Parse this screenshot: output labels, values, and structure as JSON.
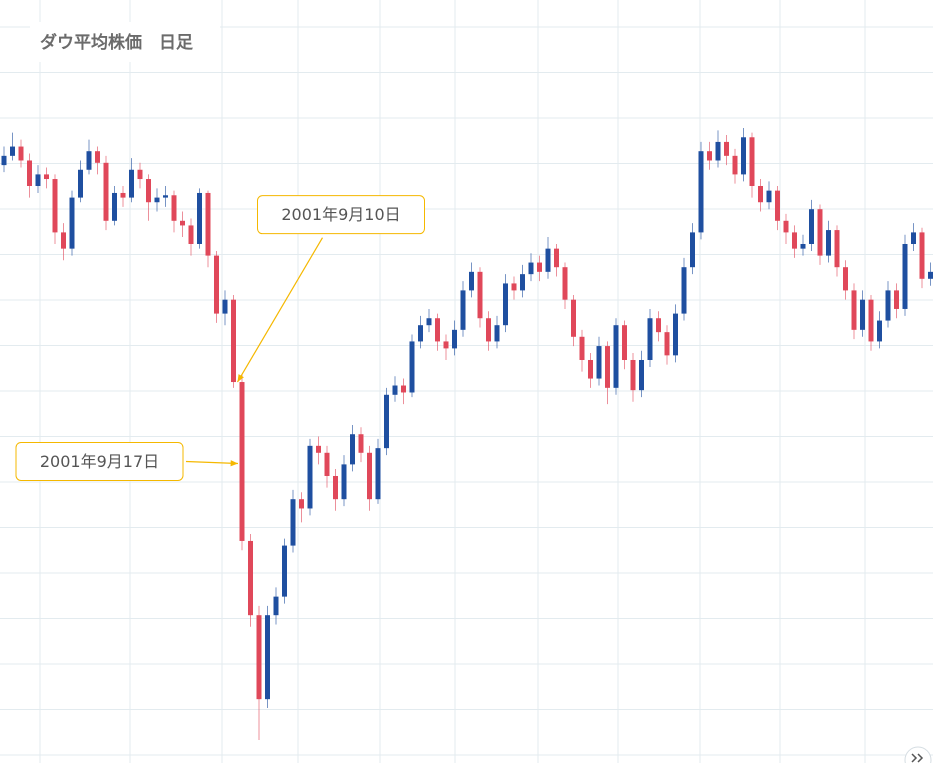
{
  "chart_data": {
    "type": "candlestick",
    "title": "ダウ平均株価　日足",
    "up_color": "#1f4fa0",
    "down_color": "#e0485a",
    "callout_color": "#f5b800",
    "categories": [
      null,
      null,
      null,
      null,
      null,
      null,
      null,
      null,
      null,
      null,
      null,
      null,
      null,
      null,
      null,
      null,
      null,
      null,
      null,
      null,
      null,
      null,
      null,
      null,
      null,
      null,
      null,
      "2001年9月10日",
      "2001年9月17日",
      null,
      null,
      null,
      null,
      null,
      null,
      null,
      null,
      null,
      null,
      null,
      null,
      null,
      null,
      null,
      null,
      null,
      null,
      null,
      null,
      null,
      null,
      null,
      null,
      null,
      null,
      null,
      null,
      null,
      null,
      null,
      null,
      null,
      null,
      null,
      null,
      null,
      null,
      null,
      null,
      null,
      null,
      null,
      null,
      null,
      null,
      null,
      null,
      null,
      null,
      null,
      null,
      null,
      null,
      null,
      null,
      null,
      null,
      null,
      null,
      null,
      null,
      null,
      null,
      null,
      null,
      null,
      null,
      null,
      null,
      null,
      null,
      null,
      null,
      null,
      null,
      null,
      null,
      null,
      null,
      null
    ],
    "open": [
      10540,
      10580,
      10620,
      10560,
      10450,
      10500,
      10480,
      10250,
      10180,
      10400,
      10520,
      10600,
      10550,
      10300,
      10420,
      10400,
      10520,
      10480,
      10380,
      10400,
      10410,
      10300,
      10280,
      10200,
      10420,
      10150,
      9900,
      9960,
      9605,
      8920,
      8600,
      8238,
      8600,
      8680,
      8900,
      9100,
      9060,
      9330,
      9300,
      9200,
      9100,
      9250,
      9380,
      9300,
      9100,
      9320,
      9550,
      9590,
      9560,
      9780,
      9850,
      9880,
      9780,
      9750,
      9830,
      10000,
      10080,
      9880,
      9780,
      9850,
      10030,
      10000,
      10070,
      10120,
      10080,
      10180,
      10100,
      9960,
      9800,
      9700,
      9620,
      9760,
      9580,
      9850,
      9700,
      9570,
      9700,
      9880,
      9820,
      9720,
      9900,
      10100,
      10250,
      10600,
      10560,
      10640,
      10580,
      10500,
      10660,
      10450,
      10380,
      10430,
      10300,
      10250,
      10180,
      10200,
      10350,
      10150,
      10260,
      10100,
      10000,
      9830,
      9960,
      9780,
      9870,
      10000,
      9920,
      10200,
      10250,
      10050
    ],
    "high": [
      10620,
      10680,
      10650,
      10590,
      10540,
      10530,
      10500,
      10290,
      10430,
      10560,
      10650,
      10620,
      10580,
      10450,
      10450,
      10570,
      10550,
      10500,
      10440,
      10450,
      10430,
      10340,
      10310,
      10440,
      10430,
      10170,
      10000,
      9980,
      9640,
      8950,
      8640,
      8640,
      8720,
      8930,
      9140,
      9130,
      9360,
      9370,
      9330,
      9230,
      9290,
      9420,
      9410,
      9330,
      9360,
      9580,
      9630,
      9620,
      9810,
      9890,
      9920,
      9900,
      9810,
      9870,
      10040,
      10120,
      10100,
      9910,
      9890,
      10070,
      10060,
      10110,
      10160,
      10150,
      10230,
      10200,
      10120,
      9980,
      9830,
      9730,
      9800,
      9780,
      9880,
      9870,
      9730,
      9740,
      9920,
      9910,
      9850,
      9940,
      10140,
      10290,
      10640,
      10640,
      10690,
      10670,
      10610,
      10700,
      10680,
      10480,
      10470,
      10450,
      10330,
      10280,
      10240,
      10390,
      10370,
      10300,
      10280,
      10130,
      10030,
      10000,
      9980,
      9910,
      10040,
      10030,
      10240,
      10290,
      10270,
      10120
    ],
    "low": [
      10510,
      10560,
      10530,
      10400,
      10420,
      10440,
      10200,
      10130,
      10150,
      10380,
      10500,
      10500,
      10260,
      10280,
      10360,
      10380,
      10440,
      10300,
      10340,
      10360,
      10250,
      10230,
      10150,
      10180,
      10100,
      9860,
      9850,
      9580,
      8880,
      8550,
      8062,
      8200,
      8560,
      8650,
      8870,
      9000,
      9030,
      9250,
      9150,
      9050,
      9070,
      9220,
      9260,
      9050,
      9080,
      9290,
      9520,
      9510,
      9540,
      9750,
      9820,
      9740,
      9700,
      9720,
      9800,
      9970,
      9840,
      9740,
      9750,
      9820,
      9960,
      9970,
      10040,
      10040,
      10050,
      10060,
      9920,
      9760,
      9650,
      9580,
      9590,
      9510,
      9550,
      9660,
      9520,
      9540,
      9670,
      9780,
      9680,
      9690,
      9870,
      10070,
      10220,
      10520,
      10530,
      10540,
      10460,
      10470,
      10400,
      10340,
      10350,
      10260,
      10200,
      10140,
      10150,
      10170,
      10110,
      10120,
      10060,
      9960,
      9790,
      9800,
      9740,
      9750,
      9840,
      9880,
      9890,
      10170,
      10010,
      10020
    ],
    "close": [
      10580,
      10620,
      10560,
      10450,
      10500,
      10480,
      10250,
      10180,
      10400,
      10520,
      10600,
      10550,
      10300,
      10420,
      10400,
      10520,
      10480,
      10380,
      10400,
      10410,
      10300,
      10280,
      10200,
      10420,
      10150,
      9900,
      9960,
      9605,
      8920,
      8600,
      8238,
      8600,
      8680,
      8900,
      9100,
      9060,
      9330,
      9300,
      9200,
      9100,
      9250,
      9380,
      9300,
      9100,
      9320,
      9550,
      9590,
      9560,
      9780,
      9850,
      9880,
      9780,
      9750,
      9830,
      10000,
      10080,
      9880,
      9780,
      9850,
      10030,
      10000,
      10070,
      10120,
      10080,
      10180,
      10100,
      9960,
      9800,
      9700,
      9620,
      9760,
      9580,
      9850,
      9700,
      9570,
      9700,
      9880,
      9820,
      9720,
      9900,
      10100,
      10250,
      10600,
      10560,
      10640,
      10580,
      10500,
      10660,
      10450,
      10380,
      10430,
      10300,
      10250,
      10180,
      10200,
      10350,
      10150,
      10260,
      10100,
      10000,
      9830,
      9960,
      9780,
      9870,
      10000,
      9920,
      10200,
      10250,
      10050,
      10080
    ]
  }
}
